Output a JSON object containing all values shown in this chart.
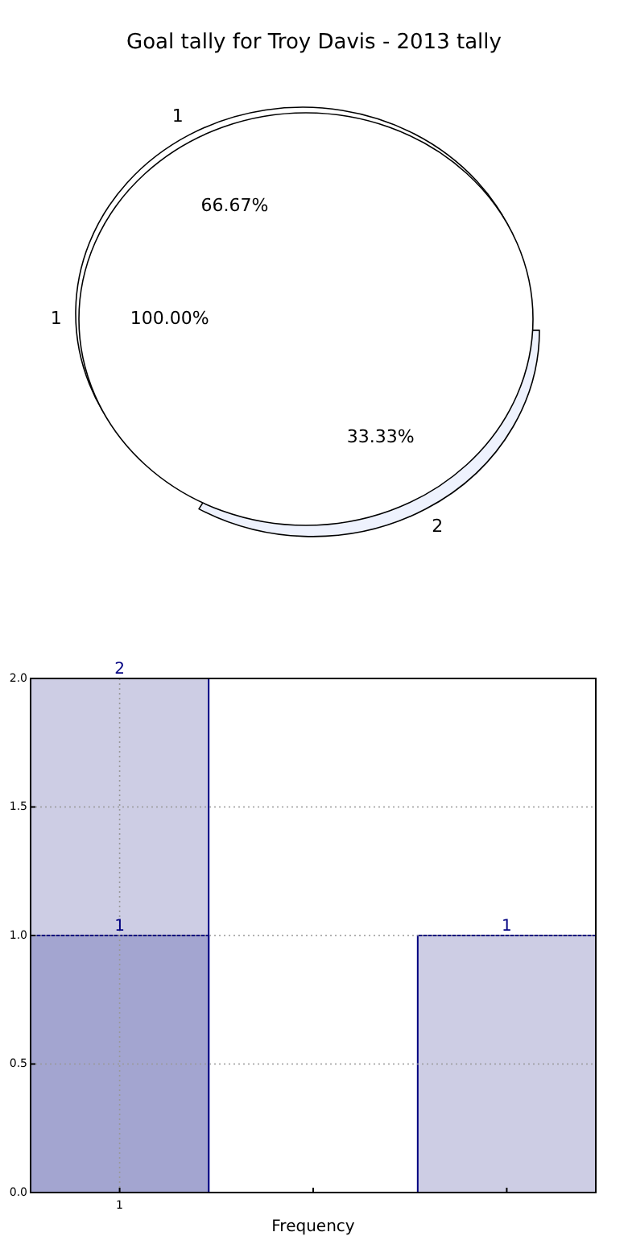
{
  "chart_data": [
    {
      "type": "pie",
      "title": "Goal tally for Troy Davis - 2013 tally",
      "categories": [
        "1"
      ],
      "values": [
        100
      ],
      "colors": [
        "#ffffff"
      ],
      "value_labels": [
        "100.00%"
      ]
    },
    {
      "type": "pie",
      "categories": [
        "1",
        "2"
      ],
      "values": [
        66.67,
        33.33
      ],
      "colors": [
        "#ffffff",
        "#eef2fd"
      ],
      "value_labels": [
        "66.67%",
        "33.33%"
      ]
    },
    {
      "type": "bar",
      "categories": [
        "1",
        null,
        null
      ],
      "xlabel": "Frequency",
      "ylim": [
        0,
        2
      ],
      "yticks": [
        {
          "value": 0,
          "label": "0.0"
        },
        {
          "value": 0.5,
          "label": "0.5"
        },
        {
          "value": 1,
          "label": "1.0"
        },
        {
          "value": 1.5,
          "label": "1.5"
        },
        {
          "value": 2,
          "label": "2.0"
        }
      ],
      "grid": true,
      "data_labels": true,
      "series": [
        {
          "color": "#cdcde4",
          "values": [
            2,
            null,
            1
          ]
        },
        {
          "color": "#a3a5d0",
          "values": [
            1,
            null,
            null
          ]
        }
      ]
    }
  ]
}
